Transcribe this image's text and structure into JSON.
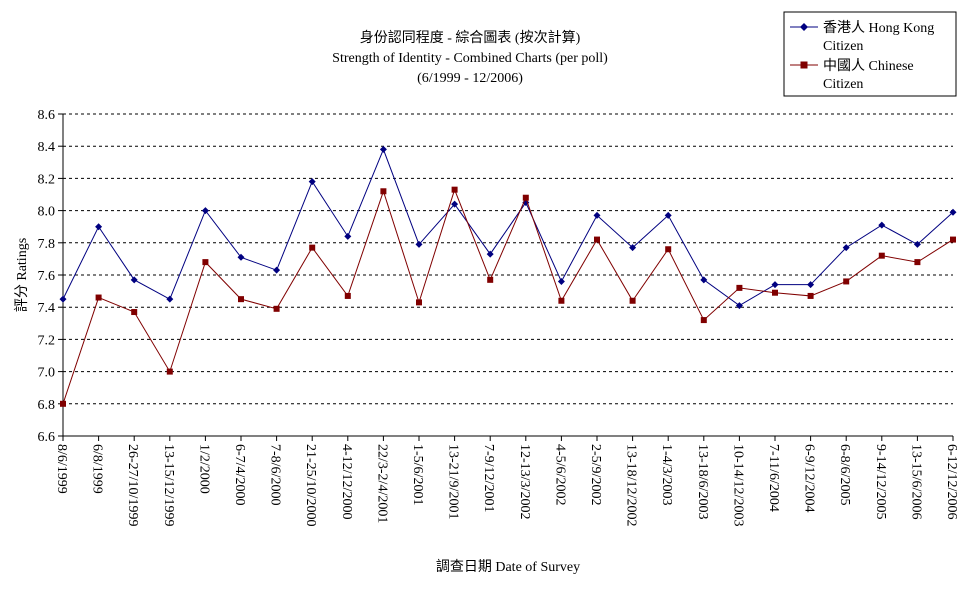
{
  "chart_data": {
    "type": "line",
    "title": "身份認同程度 - 綜合圖表 (按次計算)",
    "subtitle": "Strength of Identity - Combined Charts (per poll)",
    "subtitle2": "(6/1999 - 12/2006)",
    "xlabel": "調查日期 Date of Survey",
    "ylabel": "評分 Ratings",
    "ylim": [
      6.6,
      8.6
    ],
    "yticks": [
      "6.6",
      "6.8",
      "7.0",
      "7.2",
      "7.4",
      "7.6",
      "7.8",
      "8.0",
      "8.2",
      "8.4",
      "8.6"
    ],
    "grid": true,
    "legend_position": "top-right",
    "x": [
      "8/6/1999",
      "6/8/1999",
      "26-27/10/1999",
      "13-15/12/1999",
      "1/2/2000",
      "6-7/4/2000",
      "7-8/6/2000",
      "21-25/10/2000",
      "4-12/12/2000",
      "22/3-2/4/2001",
      "1-5/6/2001",
      "13-21/9/2001",
      "7-9/12/2001",
      "12-13/3/2002",
      "4-5/6/2002",
      "2-5/9/2002",
      "13-18/12/2002",
      "1-4/3/2003",
      "13-18/6/2003",
      "10-14/12/2003",
      "7-11/6/2004",
      "6-9/12/2004",
      "6-8/6/2005",
      "9-14/12/2005",
      "13-15/6/2006",
      "6-12/12/2006"
    ],
    "series": [
      {
        "name": "香港人 Hong Kong Citizen",
        "color": "#000080",
        "marker": "diamond",
        "values": [
          7.45,
          7.9,
          7.57,
          7.45,
          8.0,
          7.71,
          7.63,
          8.18,
          7.84,
          8.38,
          7.79,
          8.04,
          7.73,
          8.05,
          7.56,
          7.97,
          7.77,
          7.97,
          7.57,
          7.41,
          7.54,
          7.54,
          7.77,
          7.91,
          7.79,
          7.99
        ]
      },
      {
        "name": "中國人 Chinese Citizen",
        "color": "#800000",
        "marker": "square",
        "values": [
          6.8,
          7.46,
          7.37,
          7.0,
          7.68,
          7.45,
          7.39,
          7.77,
          7.47,
          8.12,
          7.43,
          8.13,
          7.57,
          8.08,
          7.44,
          7.82,
          7.44,
          7.76,
          7.32,
          7.52,
          7.49,
          7.47,
          7.56,
          7.72,
          7.68,
          7.82
        ]
      }
    ]
  },
  "legend": {
    "items": [
      {
        "line1": "香港人 Hong Kong",
        "line2": "Citizen"
      },
      {
        "line1": "中國人 Chinese",
        "line2": "Citizen"
      }
    ]
  }
}
